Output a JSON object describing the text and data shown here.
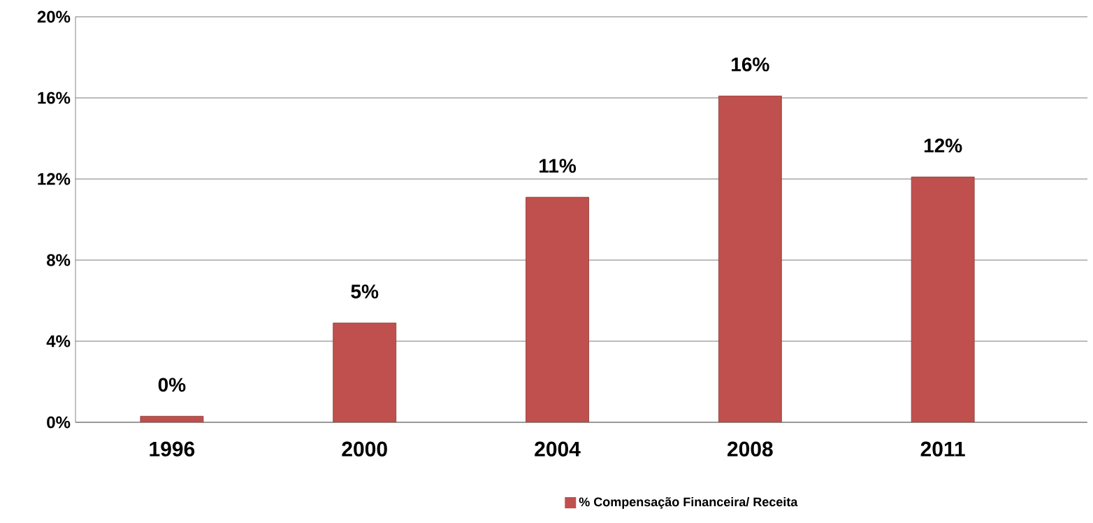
{
  "chart_data": {
    "type": "bar",
    "categories": [
      "1996",
      "2000",
      "2004",
      "2008",
      "2011"
    ],
    "series": [
      {
        "name": "% Compensação Financeira/ Receita",
        "color": "#c0504d",
        "values": [
          0.3,
          4.9,
          11.1,
          16.1,
          12.1
        ],
        "value_labels": [
          "0%",
          "5%",
          "11%",
          "16%",
          "12%"
        ]
      }
    ],
    "ylim": [
      0,
      20
    ],
    "yticks": [
      {
        "value": 0,
        "label": "0%"
      },
      {
        "value": 4,
        "label": "4%"
      },
      {
        "value": 8,
        "label": "8%"
      },
      {
        "value": 12,
        "label": "12%"
      },
      {
        "value": 16,
        "label": "16%"
      },
      {
        "value": 20,
        "label": "20%"
      }
    ],
    "grid": "y",
    "legend": "bottom"
  }
}
